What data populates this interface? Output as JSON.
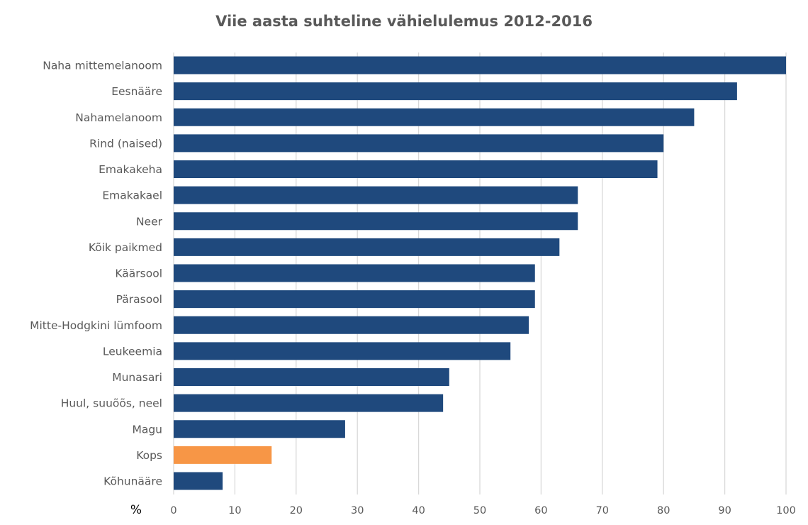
{
  "chart_data": {
    "type": "bar",
    "orientation": "horizontal",
    "title": "Viie aasta suhteline vähielulemus 2012-2016",
    "xlabel": "%",
    "ylabel": "",
    "xlim": [
      0,
      100
    ],
    "xticks": [
      0,
      10,
      20,
      30,
      40,
      50,
      60,
      70,
      80,
      90,
      100
    ],
    "grid": "vertical",
    "categories": [
      "Naha mittemelanoom",
      "Eesnääre",
      "Nahamelanoom",
      "Rind (naised)",
      "Emakakeha",
      "Emakakael",
      "Neer",
      "Kõik paikmed",
      "Käärsool",
      "Pärasool",
      "Mitte-Hodgkini lümfoom",
      "Leukeemia",
      "Munasari",
      "Huul, suuõõs, neel",
      "Magu",
      "Kops",
      "Kõhunääre"
    ],
    "values": [
      100,
      92,
      85,
      80,
      79,
      66,
      66,
      63,
      59,
      59,
      58,
      55,
      45,
      44,
      28,
      16,
      8
    ],
    "highlight": "Kops",
    "colors": {
      "bar": "#1f497d",
      "highlight": "#f79646",
      "grid": "#d9d9d9"
    }
  }
}
